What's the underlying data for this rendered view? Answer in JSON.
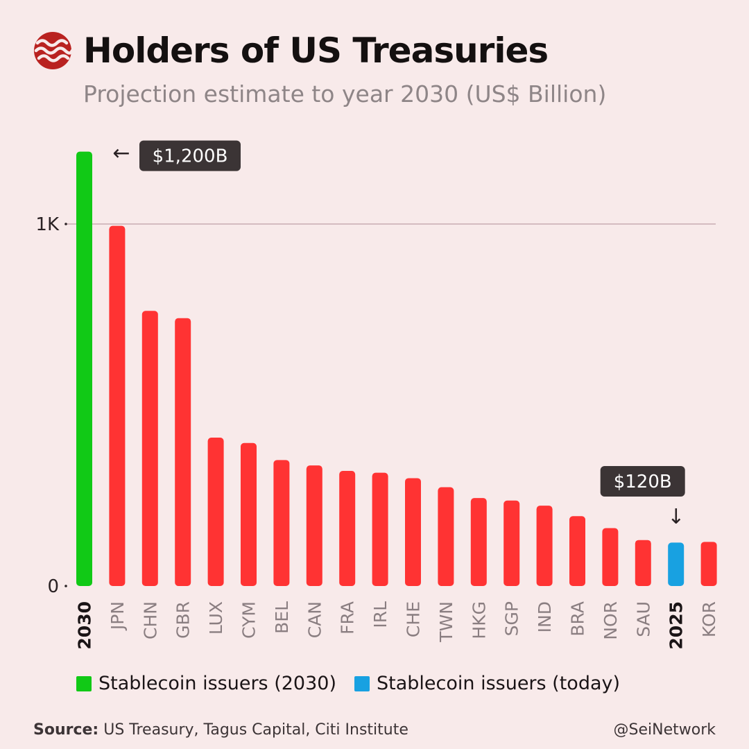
{
  "header": {
    "logo_icon": "sei-wave-icon",
    "title": "Holders of US Treasuries",
    "subtitle": "Projection estimate to year 2030 (US$ Billion)"
  },
  "colors": {
    "background": "#f8eaea",
    "stable_2030": "#11c916",
    "stable_today": "#18a1e1",
    "country": "#ff3333",
    "callout_bg": "#3b3435",
    "gridline": "#d4bbc0",
    "logo": "#b92220"
  },
  "chart_data": {
    "type": "bar",
    "title": "Holders of US Treasuries",
    "subtitle": "Projection estimate to year 2030 (US$ Billion)",
    "xlabel": "",
    "ylabel": "US$ Billion",
    "ylim": [
      0,
      1200
    ],
    "yticks": [
      {
        "value": 0,
        "label": "0"
      },
      {
        "value": 1000,
        "label": "1K"
      }
    ],
    "grid": "horizontal line at 1K",
    "categories": [
      "2030",
      "JPN",
      "CHN",
      "GBR",
      "LUX",
      "CYM",
      "BEL",
      "CAN",
      "FRA",
      "IRL",
      "CHE",
      "TWN",
      "HKG",
      "SGP",
      "IND",
      "BRA",
      "NOR",
      "SAU",
      "2025",
      "KOR"
    ],
    "values": [
      1200,
      995,
      760,
      740,
      410,
      395,
      348,
      333,
      318,
      313,
      298,
      273,
      243,
      236,
      222,
      193,
      160,
      127,
      120,
      122
    ],
    "bar_groups": [
      "stable_2030",
      "country",
      "country",
      "country",
      "country",
      "country",
      "country",
      "country",
      "country",
      "country",
      "country",
      "country",
      "country",
      "country",
      "country",
      "country",
      "country",
      "country",
      "stable_today",
      "country"
    ],
    "bold_categories": [
      "2030",
      "2025"
    ],
    "annotations": [
      {
        "category": "2030",
        "text": "$1,200B",
        "arrow": "←",
        "placement": "right"
      },
      {
        "category": "2025",
        "text": "$120B",
        "arrow": "↓",
        "placement": "above"
      }
    ]
  },
  "legend": {
    "items": [
      {
        "label": "Stablecoin issuers (2030)",
        "color": "#11c916"
      },
      {
        "label": "Stablecoin issuers (today)",
        "color": "#18a1e1"
      }
    ],
    "placement": "bottom-left"
  },
  "footer": {
    "source_label": "Source:",
    "source_text": "US Treasury, Tagus Capital, Citi Institute",
    "handle": "@SeiNetwork"
  }
}
